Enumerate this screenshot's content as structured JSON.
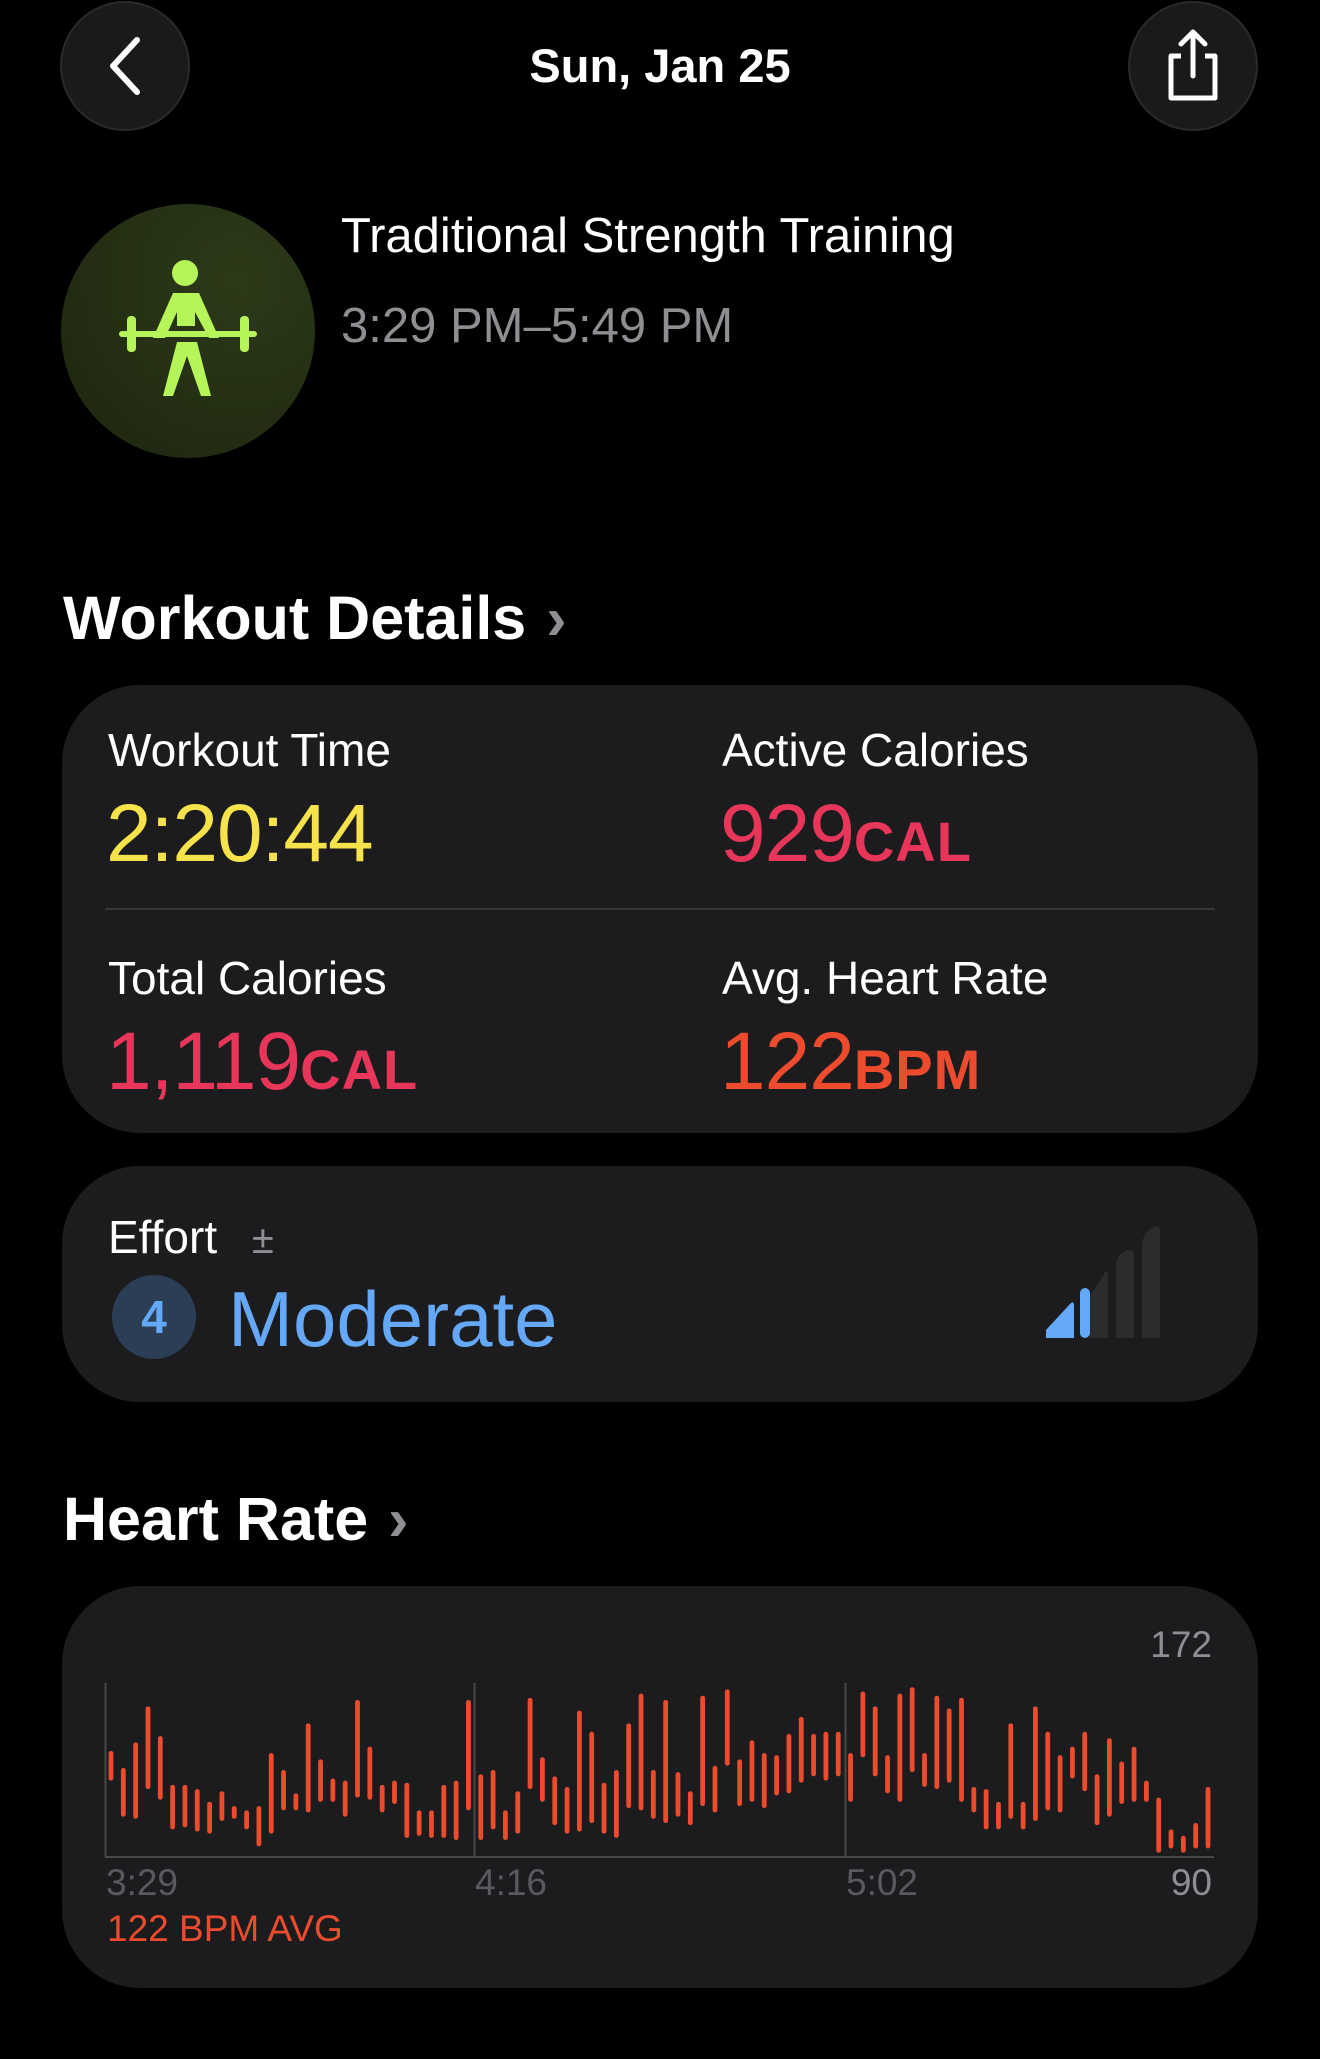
{
  "nav": {
    "title": "Sun, Jan 25",
    "back_icon": "chevron-left-icon",
    "share_icon": "share-icon"
  },
  "workout": {
    "name": "Traditional Strength Training",
    "time_range": "3:29 PM–5:49 PM",
    "icon": "weightlifting-figure-icon",
    "icon_color": "#b6f55a"
  },
  "details": {
    "title": "Workout Details",
    "chevron": "›",
    "metrics": [
      {
        "label": "Workout Time",
        "value": "2:20:44",
        "unit": "",
        "color": "#f6e24a"
      },
      {
        "label": "Active Calories",
        "value": "929",
        "unit": "CAL",
        "color": "#e8355a"
      },
      {
        "label": "Total Calories",
        "value": "1,119",
        "unit": "CAL",
        "color": "#e8355a"
      },
      {
        "label": "Avg. Heart Rate",
        "value": "122",
        "unit": "BPM",
        "color": "#ec4b2e"
      }
    ]
  },
  "effort": {
    "label": "Effort",
    "adjust_symbol": "±",
    "score": "4",
    "level": "Moderate",
    "color": "#64a8f7",
    "level_bars_filled": 2,
    "level_bars_total": 5
  },
  "heart_rate": {
    "title": "Heart Rate",
    "chevron": "›",
    "avg_label": "122 BPM AVG",
    "color": "#ec4b2e"
  },
  "chart_data": {
    "type": "bar",
    "subtype": "range",
    "ylim": [
      90,
      172
    ],
    "y_max_label": "172",
    "y_min_label": "90",
    "x_tick_labels": [
      "3:29",
      "4:16",
      "5:02"
    ],
    "grid": "vertical dividers at tick labels",
    "ranges": [
      [
        126,
        140
      ],
      [
        109,
        132
      ],
      [
        108,
        144
      ],
      [
        122,
        161
      ],
      [
        117,
        147
      ],
      [
        103,
        124
      ],
      [
        104,
        124
      ],
      [
        102,
        122
      ],
      [
        101,
        116
      ],
      [
        107,
        121
      ],
      [
        108,
        114
      ],
      [
        103,
        112
      ],
      [
        95,
        114
      ],
      [
        101,
        139
      ],
      [
        112,
        131
      ],
      [
        112,
        120
      ],
      [
        111,
        153
      ],
      [
        116,
        136
      ],
      [
        116,
        127
      ],
      [
        109,
        126
      ],
      [
        118,
        164
      ],
      [
        117,
        142
      ],
      [
        111,
        124
      ],
      [
        115,
        126
      ],
      [
        99,
        125
      ],
      [
        100,
        112
      ],
      [
        99,
        112
      ],
      [
        99,
        124
      ],
      [
        98,
        126
      ],
      [
        112,
        164
      ],
      [
        98,
        129
      ],
      [
        103,
        131
      ],
      [
        98,
        112
      ],
      [
        101,
        121
      ],
      [
        122,
        165
      ],
      [
        116,
        137
      ],
      [
        105,
        128
      ],
      [
        101,
        123
      ],
      [
        102,
        159
      ],
      [
        106,
        149
      ],
      [
        101,
        125
      ],
      [
        99,
        131
      ],
      [
        113,
        153
      ],
      [
        112,
        167
      ],
      [
        108,
        131
      ],
      [
        106,
        164
      ],
      [
        109,
        130
      ],
      [
        105,
        121
      ],
      [
        114,
        166
      ],
      [
        111,
        133
      ],
      [
        133,
        169
      ],
      [
        114,
        136
      ],
      [
        116,
        145
      ],
      [
        113,
        139
      ],
      [
        119,
        138
      ],
      [
        120,
        148
      ],
      [
        125,
        156
      ],
      [
        128,
        148
      ],
      [
        126,
        149
      ],
      [
        128,
        149
      ],
      [
        116,
        139
      ],
      [
        137,
        168
      ],
      [
        128,
        161
      ],
      [
        120,
        138
      ],
      [
        116,
        167
      ],
      [
        130,
        170
      ],
      [
        123,
        139
      ],
      [
        122,
        166
      ],
      [
        125,
        160
      ],
      [
        116,
        165
      ],
      [
        111,
        123
      ],
      [
        103,
        122
      ],
      [
        103,
        116
      ],
      [
        108,
        153
      ],
      [
        103,
        116
      ],
      [
        107,
        161
      ],
      [
        112,
        149
      ],
      [
        111,
        138
      ],
      [
        127,
        142
      ],
      [
        121,
        149
      ],
      [
        105,
        129
      ],
      [
        109,
        146
      ],
      [
        115,
        135
      ],
      [
        116,
        142
      ],
      [
        116,
        126
      ],
      [
        92,
        118
      ],
      [
        94,
        103
      ],
      [
        92,
        100
      ],
      [
        94,
        106
      ],
      [
        94,
        123
      ]
    ]
  }
}
